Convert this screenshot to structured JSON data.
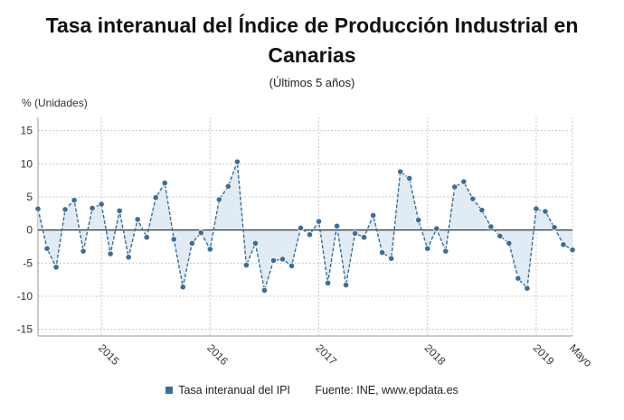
{
  "title": "Tasa interanual del Índice de Producción Industrial en Canarias",
  "subtitle": "(Últimos 5 años)",
  "unit_label": "% (Unidades)",
  "source": "Fuente: INE, www.epdata.es",
  "colors": {
    "series": "#3b6e98",
    "area": "#dce8f2",
    "grid": "#c8c8c8",
    "zero_line": "#222222"
  },
  "chart_data": {
    "type": "area",
    "title": "Tasa interanual del Índice de Producción Industrial en Canarias",
    "subtitle": "(Últimos 5 años)",
    "ylabel": "% (Unidades)",
    "ylim": [
      -16,
      17
    ],
    "yticks": [
      15,
      10,
      5,
      0,
      -5,
      -10,
      -15
    ],
    "x_start": "2014-06",
    "x_end": "2019-05",
    "xtick_labels": [
      {
        "label": "2015",
        "date": "2015-01"
      },
      {
        "label": "2016",
        "date": "2016-01"
      },
      {
        "label": "2017",
        "date": "2017-01"
      },
      {
        "label": "2018",
        "date": "2018-01"
      },
      {
        "label": "2019",
        "date": "2019-01"
      },
      {
        "label": "Mayo",
        "date": "2019-05"
      }
    ],
    "grid": true,
    "legend": "bottom",
    "series": [
      {
        "name": "Tasa interanual del IPI",
        "x": [
          "2014-06",
          "2014-07",
          "2014-08",
          "2014-09",
          "2014-10",
          "2014-11",
          "2014-12",
          "2015-01",
          "2015-02",
          "2015-03",
          "2015-04",
          "2015-05",
          "2015-06",
          "2015-07",
          "2015-08",
          "2015-09",
          "2015-10",
          "2015-11",
          "2015-12",
          "2016-01",
          "2016-02",
          "2016-03",
          "2016-04",
          "2016-05",
          "2016-06",
          "2016-07",
          "2016-08",
          "2016-09",
          "2016-10",
          "2016-11",
          "2016-12",
          "2017-01",
          "2017-02",
          "2017-03",
          "2017-04",
          "2017-05",
          "2017-06",
          "2017-07",
          "2017-08",
          "2017-09",
          "2017-10",
          "2017-11",
          "2017-12",
          "2018-01",
          "2018-02",
          "2018-03",
          "2018-04",
          "2018-05",
          "2018-06",
          "2018-07",
          "2018-08",
          "2018-09",
          "2018-10",
          "2018-11",
          "2018-12",
          "2019-01",
          "2019-02",
          "2019-03",
          "2019-04",
          "2019-05"
        ],
        "values": [
          3.2,
          -2.8,
          -5.6,
          3.1,
          4.5,
          -3.2,
          3.3,
          3.9,
          -3.6,
          2.9,
          -4.1,
          1.6,
          -1.1,
          4.9,
          7.1,
          -1.4,
          -8.6,
          -2.0,
          -0.4,
          -2.9,
          4.6,
          6.6,
          10.3,
          -5.3,
          -2.0,
          -9.1,
          -4.6,
          -4.4,
          -5.4,
          0.3,
          -0.7,
          1.3,
          -8.0,
          0.6,
          -8.3,
          -0.5,
          -1.1,
          2.2,
          -3.4,
          -4.3,
          8.8,
          7.8,
          1.5,
          -2.8,
          0.2,
          -3.2,
          6.5,
          7.3,
          4.7,
          3.0,
          0.5,
          -0.9,
          -2.0,
          -7.3,
          -8.8,
          3.2,
          2.8,
          0.4,
          -2.2,
          -3.0
        ]
      }
    ]
  }
}
